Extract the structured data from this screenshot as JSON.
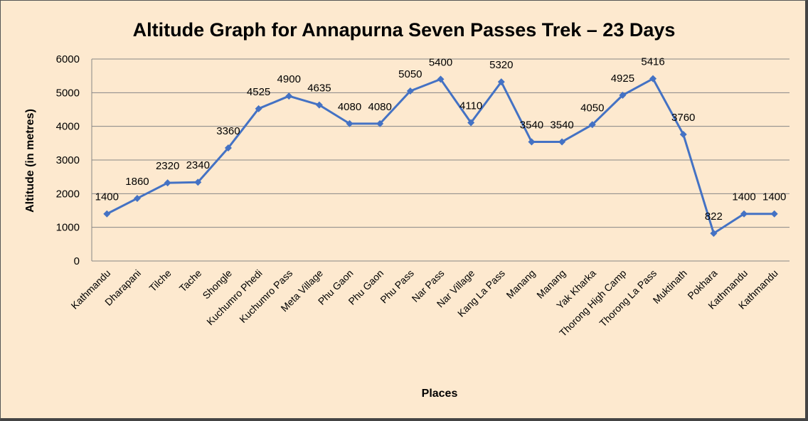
{
  "chart_data": {
    "type": "line",
    "title": "Altitude Graph for Annapurna Seven Passes Trek – 23 Days",
    "xlabel": "Places",
    "ylabel": "Altitude (in metres)",
    "ylim": [
      0,
      6000
    ],
    "yticks": [
      0,
      1000,
      2000,
      3000,
      4000,
      5000,
      6000
    ],
    "grid": true,
    "legend": null,
    "data_labels": true,
    "series_color": "#4472c4",
    "background_color": "#fde9cf",
    "categories": [
      "Kathmandu",
      "Dharapani",
      "Tilche",
      "Tache",
      "Shongle",
      "Kuchumro Phedi",
      "Kuchumro Pass",
      "Meta Village",
      "Phu Gaon",
      "Phu Gaon",
      "Phu Pass",
      "Nar Pass",
      "Nar Village",
      "Kang La Pass",
      "Manang",
      "Manang",
      "Yak Kharka",
      "Thorong High Camp",
      "Thorong La Pass",
      "Muktinath",
      "Pokhara",
      "Kathmandu",
      "Kathmandu"
    ],
    "series": [
      {
        "name": "Altitude",
        "values": [
          1400,
          1860,
          2320,
          2340,
          3360,
          4525,
          4900,
          4635,
          4080,
          4080,
          5050,
          5400,
          4110,
          5320,
          3540,
          3540,
          4050,
          4925,
          5416,
          3760,
          822,
          1400,
          1400
        ]
      }
    ]
  }
}
